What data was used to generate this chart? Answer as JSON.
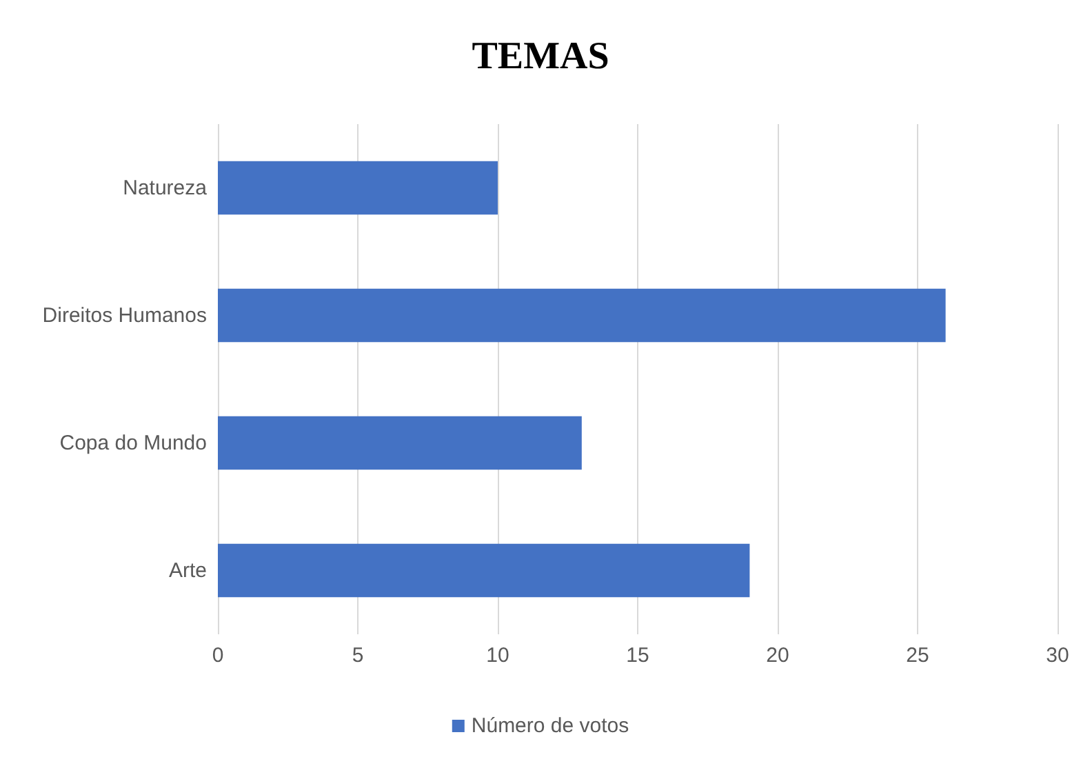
{
  "chart_data": {
    "type": "bar",
    "title": "TEMAS",
    "orientation": "horizontal",
    "categories": [
      "Natureza",
      "Direitos Humanos",
      "Copa do Mundo",
      "Arte"
    ],
    "series": [
      {
        "name": "Número de votos",
        "color": "#4472c4",
        "values": [
          10,
          26,
          13,
          19
        ]
      }
    ],
    "xlim": [
      0,
      30
    ],
    "xticks": [
      0,
      5,
      10,
      15,
      20,
      25,
      30
    ],
    "grid": "x",
    "legend": "bottom"
  }
}
